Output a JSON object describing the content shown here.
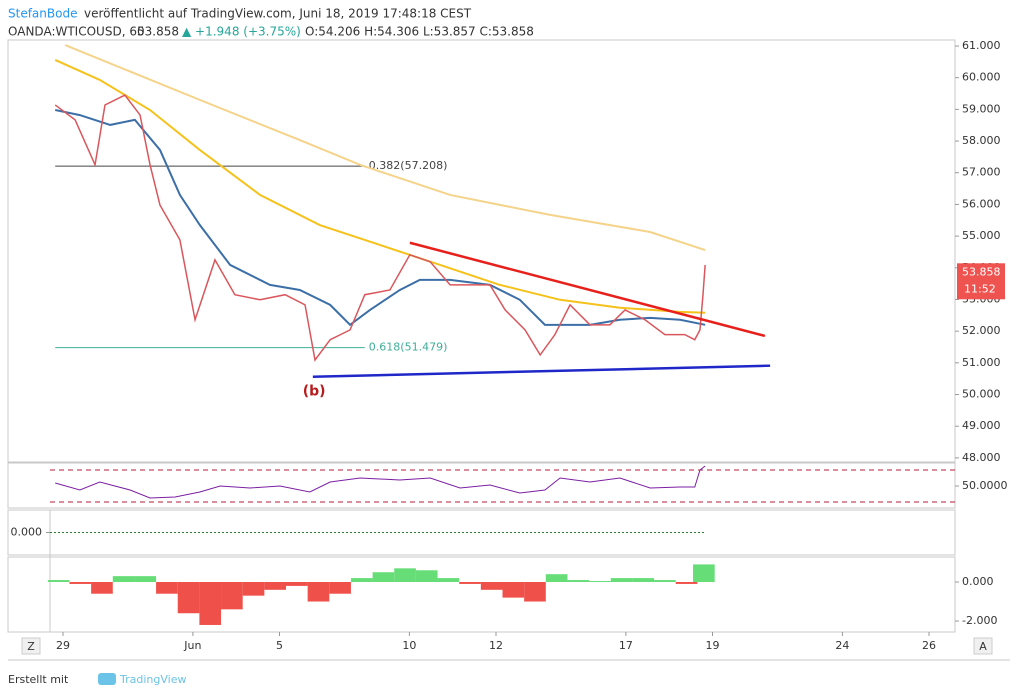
{
  "header": {
    "author": "StefanBode",
    "published": "veröffentlicht auf TradingView.com, Juni 18, 2019 17:48:18 CEST",
    "symbol": "OANDA:WTICOUSD, 60",
    "price": "53.858",
    "change": "▲ +1.948 (+3.75%)",
    "ohlc": "O:54.206 H:54.306 L:53.857 C:53.858"
  },
  "footer": {
    "made_with": "Erstellt mit",
    "brand": "TradingView"
  },
  "controls": {
    "left": "Z",
    "right": "A"
  },
  "chart_data": [
    {
      "type": "line",
      "xlim": [
        -0.3,
        20.6
      ],
      "xticks": [
        {
          "value": 0,
          "label": "29"
        },
        {
          "value": 3,
          "label": "Jun"
        },
        {
          "value": 5,
          "label": "5"
        },
        {
          "value": 8,
          "label": "10"
        },
        {
          "value": 10,
          "label": "12"
        },
        {
          "value": 13,
          "label": "17"
        },
        {
          "value": 15,
          "label": "19"
        },
        {
          "value": 18,
          "label": "24"
        },
        {
          "value": 20,
          "label": "26"
        }
      ],
      "ylim": [
        47.87,
        61.19
      ],
      "yticks": [
        {
          "value": 48,
          "label": "48.000"
        },
        {
          "value": 49,
          "label": "49.000"
        },
        {
          "value": 50,
          "label": "50.000"
        },
        {
          "value": 51,
          "label": "51.000"
        },
        {
          "value": 52,
          "label": "52.000"
        },
        {
          "value": 53,
          "label": "53.000"
        },
        {
          "value": 54,
          "label": "54.000"
        },
        {
          "value": 55,
          "label": "55.000"
        },
        {
          "value": 56,
          "label": "56.000"
        },
        {
          "value": 57,
          "label": "57.000"
        },
        {
          "value": 58,
          "label": "58.000"
        },
        {
          "value": 59,
          "label": "59.000"
        },
        {
          "value": 60,
          "label": "60.000"
        },
        {
          "value": 61,
          "label": "61.000"
        }
      ],
      "series": [
        {
          "color": "#f5d38a",
          "width": 2,
          "x": [
            0.05,
            3.16,
            5.47,
            6.86,
            8.94,
            11.25,
            13.56,
            14.83
          ],
          "values": [
            61.03,
            59.3,
            58.03,
            57.25,
            56.3,
            55.67,
            55.13,
            54.56
          ]
        },
        {
          "color": "#f5c21b",
          "width": 2,
          "x": [
            -0.18,
            0.85,
            2.01,
            3.16,
            4.55,
            5.93,
            7.32,
            8.71,
            10.09,
            11.48,
            12.86,
            14.25,
            14.83
          ],
          "values": [
            60.56,
            59.93,
            58.98,
            57.72,
            56.3,
            55.35,
            54.72,
            54.09,
            53.46,
            52.99,
            52.74,
            52.61,
            52.58
          ]
        },
        {
          "color": "#3c6fa7",
          "width": 2,
          "x": [
            -0.18,
            0.39,
            1.09,
            1.66,
            2.24,
            2.7,
            3.16,
            3.86,
            4.78,
            5.47,
            6.17,
            6.63,
            7.09,
            7.78,
            8.24,
            8.94,
            9.86,
            10.55,
            11.13,
            11.59,
            12.17,
            12.86,
            13.56,
            14.25,
            14.83
          ],
          "values": [
            58.98,
            58.82,
            58.51,
            58.67,
            57.72,
            56.3,
            55.35,
            54.09,
            53.46,
            53.3,
            52.83,
            52.2,
            52.67,
            53.3,
            53.62,
            53.62,
            53.46,
            52.99,
            52.2,
            52.2,
            52.2,
            52.36,
            52.42,
            52.36,
            52.2
          ]
        },
        {
          "color": "#d9575c",
          "width": 1.5,
          "x": [
            -0.18,
            0.28,
            0.74,
            0.97,
            1.43,
            1.78,
            2.01,
            2.24,
            2.7,
            3.05,
            3.51,
            3.97,
            4.55,
            5.13,
            5.59,
            5.82,
            6.17,
            6.63,
            6.97,
            7.55,
            8.01,
            8.48,
            8.94,
            9.4,
            9.86,
            10.21,
            10.67,
            11.02,
            11.36,
            11.71,
            12.17,
            12.63,
            12.98,
            13.44,
            13.9,
            14.36,
            14.59,
            14.71,
            14.78,
            14.83
          ],
          "values": [
            59.14,
            58.67,
            57.25,
            59.14,
            59.45,
            58.82,
            57.25,
            55.98,
            54.88,
            52.36,
            54.25,
            53.15,
            52.99,
            53.15,
            52.83,
            51.09,
            51.73,
            52.04,
            53.15,
            53.3,
            54.41,
            54.19,
            53.46,
            53.46,
            53.46,
            52.67,
            52.04,
            51.25,
            51.89,
            52.83,
            52.2,
            52.2,
            52.67,
            52.36,
            51.89,
            51.89,
            51.73,
            52.04,
            53.15,
            54.09
          ]
        }
      ],
      "trendlines": [
        {
          "color": "#e8201c",
          "x": [
            8.01,
            16.21
          ],
          "values": [
            54.79,
            51.85
          ]
        },
        {
          "color": "#1f27c9",
          "x": [
            5.77,
            16.33
          ],
          "values": [
            50.56,
            50.91
          ]
        }
      ],
      "levels": [
        {
          "value": 57.208,
          "label": "0.382(57.208)",
          "x": [
            -0.18,
            6.97
          ],
          "color": "#444"
        },
        {
          "value": 51.479,
          "label": "0.618(51.479)",
          "x": [
            -0.18,
            6.97
          ],
          "color": "#3fae9a"
        }
      ],
      "annotations": [
        {
          "text": "(b)",
          "x": 5.8,
          "y": 50.09,
          "color": "#b71c1c"
        }
      ],
      "last_price": 53.858,
      "countdown": "11:52",
      "last_color": "#ef5350"
    },
    {
      "type": "line",
      "ylim": [
        22.5,
        78.75
      ],
      "yticks": [
        {
          "value": 50,
          "label": "50.0000"
        }
      ],
      "hlines": [
        70,
        30
      ],
      "series": [
        {
          "color": "#7b1fa2",
          "width": 1,
          "x": [
            -0.18,
            0.39,
            0.85,
            1.55,
            2.01,
            2.59,
            3.16,
            3.63,
            4.32,
            5.01,
            5.7,
            6.17,
            6.86,
            7.78,
            8.48,
            9.17,
            9.86,
            10.55,
            11.13,
            11.48,
            12.17,
            12.86,
            13.56,
            14.25,
            14.59,
            14.71,
            14.83
          ],
          "values": [
            53.75,
            45,
            55,
            45,
            35,
            36.25,
            42.5,
            50,
            47.5,
            50,
            42.5,
            55,
            60,
            57.5,
            60,
            47.5,
            51.25,
            41.25,
            45,
            60,
            55,
            60,
            47.5,
            48.75,
            48.75,
            70,
            75
          ]
        }
      ]
    },
    {
      "type": "line",
      "ylim": [
        -1,
        1
      ],
      "yticks": [
        {
          "value": 0,
          "label": "0.000"
        }
      ],
      "tick_side": "left",
      "series": []
    },
    {
      "type": "bar",
      "ylim": [
        -2.56,
        1.28
      ],
      "yticks": [
        {
          "value": 0,
          "label": "0.000"
        },
        {
          "value": -2,
          "label": "-2.000"
        }
      ],
      "up_color": "#66dd77",
      "down_color": "#f0504a",
      "bar_width": 0.5,
      "x": [
        -0.1,
        0.4,
        0.9,
        1.4,
        1.9,
        2.4,
        2.9,
        3.4,
        3.9,
        4.4,
        4.9,
        5.4,
        5.9,
        6.4,
        6.9,
        7.4,
        7.9,
        8.4,
        8.9,
        9.4,
        9.9,
        10.4,
        10.9,
        11.4,
        11.9,
        12.4,
        12.9,
        13.4,
        13.9,
        14.4,
        14.8
      ],
      "values": [
        0.1,
        -0.1,
        -0.6,
        0.3,
        0.3,
        -0.6,
        -1.6,
        -2.2,
        -1.4,
        -0.7,
        -0.4,
        -0.2,
        -1.0,
        -0.6,
        0.2,
        0.5,
        0.7,
        0.6,
        0.2,
        -0.1,
        -0.4,
        -0.8,
        -1.0,
        0.4,
        0.1,
        0.05,
        0.2,
        0.2,
        0.1,
        -0.1,
        0.9
      ]
    }
  ]
}
